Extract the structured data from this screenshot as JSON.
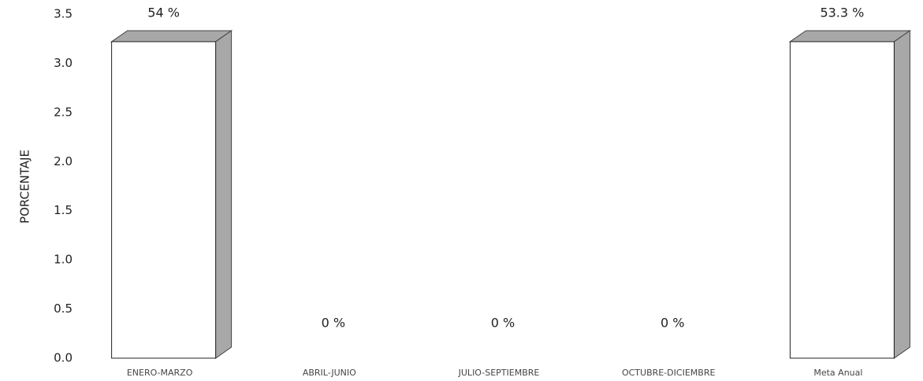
{
  "chart_data": {
    "type": "bar3d",
    "y_label": "PORCENTAJE",
    "categories": [
      "ENERO-MARZO",
      "ABRIL-JUNIO",
      "JULIO-SEPTIEMBRE",
      "OCTUBRE-DICIEMBRE",
      "Meta Anual"
    ],
    "values": [
      3.22,
      0,
      0,
      0,
      3.22
    ],
    "annotations": [
      "54 %",
      "0 %",
      "0 %",
      "0 %",
      "53.3 %"
    ],
    "color": "#ffffff",
    "side_color": "#a8a8a8",
    "ylim": [
      0,
      3.5
    ],
    "yticks": [
      {
        "value": 0,
        "label": "0.0"
      },
      {
        "value": 0.5,
        "label": "0.5"
      },
      {
        "value": 1,
        "label": "1.0"
      },
      {
        "value": 1.5,
        "label": "1.5"
      },
      {
        "value": 2,
        "label": "2.0"
      },
      {
        "value": 2.5,
        "label": "2.5"
      },
      {
        "value": 3,
        "label": "3.0"
      },
      {
        "value": 3.5,
        "label": "3.5"
      }
    ]
  }
}
